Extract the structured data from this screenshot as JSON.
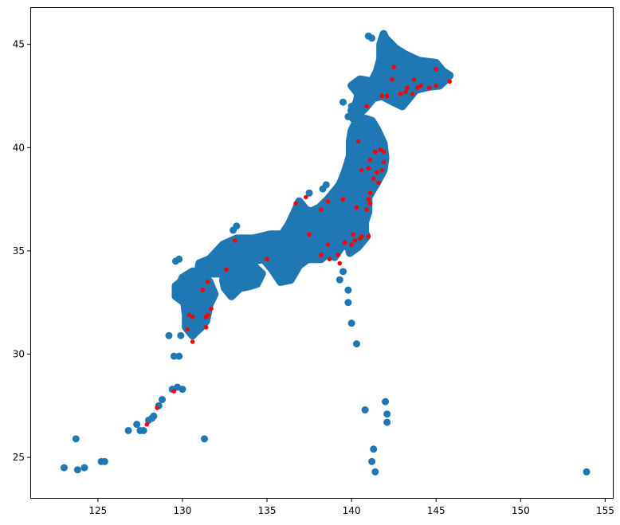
{
  "chart_data": {
    "type": "scatter",
    "title": "",
    "xlabel": "",
    "ylabel": "",
    "xlim": [
      121,
      155.5
    ],
    "ylim": [
      23,
      46.8
    ],
    "grid": false,
    "legend": "none",
    "xticks": [
      125,
      130,
      135,
      140,
      145,
      150,
      155
    ],
    "yticks": [
      25,
      30,
      35,
      40,
      45
    ],
    "colors": {
      "land": "#1f77b4",
      "points": "#ff0000"
    },
    "series": [
      {
        "role": "land",
        "color": "#1f77b4",
        "polygons": [
          [
            [
              141.9,
              45.5
            ],
            [
              142.0,
              45.3
            ],
            [
              142.6,
              44.8
            ],
            [
              143.2,
              44.5
            ],
            [
              144.0,
              44.2
            ],
            [
              145.0,
              44.1
            ],
            [
              145.4,
              43.7
            ],
            [
              145.8,
              43.5
            ],
            [
              145.6,
              43.3
            ],
            [
              145.2,
              43.0
            ],
            [
              144.6,
              42.95
            ],
            [
              143.8,
              42.8
            ],
            [
              143.3,
              42.3
            ],
            [
              143.0,
              42.0
            ],
            [
              142.5,
              42.2
            ],
            [
              141.8,
              42.5
            ],
            [
              141.3,
              42.4
            ],
            [
              140.8,
              41.9
            ],
            [
              140.1,
              41.4
            ],
            [
              140.0,
              41.8
            ],
            [
              140.3,
              42.2
            ],
            [
              140.4,
              42.6
            ],
            [
              140.0,
              43.0
            ],
            [
              140.5,
              43.3
            ],
            [
              141.2,
              43.2
            ],
            [
              141.5,
              43.7
            ],
            [
              141.7,
              44.3
            ],
            [
              141.7,
              45.0
            ]
          ],
          [
            [
              140.4,
              41.5
            ],
            [
              141.2,
              41.3
            ],
            [
              141.5,
              40.9
            ],
            [
              141.9,
              40.2
            ],
            [
              142.0,
              39.5
            ],
            [
              141.9,
              38.9
            ],
            [
              141.5,
              38.3
            ],
            [
              141.0,
              37.6
            ],
            [
              141.0,
              36.9
            ],
            [
              140.8,
              36.4
            ],
            [
              140.8,
              35.9
            ],
            [
              140.9,
              35.7
            ],
            [
              140.4,
              35.2
            ],
            [
              139.9,
              34.9
            ],
            [
              139.8,
              35.3
            ],
            [
              139.4,
              35.2
            ],
            [
              139.0,
              34.7
            ],
            [
              138.8,
              35.0
            ],
            [
              138.2,
              34.6
            ],
            [
              137.4,
              34.6
            ],
            [
              136.9,
              34.3
            ],
            [
              136.4,
              33.6
            ],
            [
              135.8,
              33.5
            ],
            [
              135.3,
              34.1
            ],
            [
              134.8,
              34.6
            ],
            [
              134.0,
              34.5
            ],
            [
              133.0,
              34.2
            ],
            [
              132.2,
              33.9
            ],
            [
              131.4,
              33.9
            ],
            [
              130.9,
              33.9
            ],
            [
              131.0,
              34.4
            ],
            [
              131.6,
              34.6
            ],
            [
              132.4,
              35.3
            ],
            [
              133.2,
              35.6
            ],
            [
              134.2,
              35.6
            ],
            [
              135.2,
              35.8
            ],
            [
              135.9,
              35.8
            ],
            [
              136.3,
              36.3
            ],
            [
              136.7,
              37.0
            ],
            [
              136.9,
              37.4
            ],
            [
              137.3,
              37.0
            ],
            [
              137.6,
              36.9
            ],
            [
              138.1,
              37.1
            ],
            [
              138.6,
              37.5
            ],
            [
              139.3,
              38.2
            ],
            [
              139.6,
              38.8
            ],
            [
              139.9,
              39.6
            ],
            [
              139.9,
              40.3
            ],
            [
              140.0,
              40.8
            ]
          ],
          [
            [
              132.9,
              34.1
            ],
            [
              133.6,
              34.3
            ],
            [
              134.3,
              34.2
            ],
            [
              134.7,
              33.9
            ],
            [
              134.4,
              33.4
            ],
            [
              134.0,
              33.3
            ],
            [
              133.4,
              33.2
            ],
            [
              132.9,
              32.8
            ],
            [
              132.5,
              33.2
            ],
            [
              132.4,
              33.6
            ]
          ],
          [
            [
              130.0,
              33.7
            ],
            [
              130.6,
              34.0
            ],
            [
              131.2,
              33.9
            ],
            [
              131.6,
              33.5
            ],
            [
              131.9,
              32.9
            ],
            [
              131.6,
              32.4
            ],
            [
              131.4,
              31.6
            ],
            [
              131.1,
              31.3
            ],
            [
              130.7,
              31.0
            ],
            [
              130.6,
              30.9
            ],
            [
              130.2,
              31.3
            ],
            [
              130.2,
              31.9
            ],
            [
              130.1,
              32.5
            ],
            [
              129.6,
              32.8
            ],
            [
              129.6,
              33.3
            ],
            [
              129.9,
              33.5
            ]
          ]
        ],
        "points": [
          [
            123.0,
            24.5
          ],
          [
            123.7,
            25.9
          ],
          [
            123.8,
            24.4
          ],
          [
            124.2,
            24.5
          ],
          [
            125.2,
            24.8
          ],
          [
            125.4,
            24.8
          ],
          [
            126.8,
            26.3
          ],
          [
            127.3,
            26.6
          ],
          [
            127.7,
            26.3
          ],
          [
            128.0,
            26.8
          ],
          [
            128.3,
            27.0
          ],
          [
            128.6,
            27.5
          ],
          [
            128.8,
            27.8
          ],
          [
            129.4,
            28.3
          ],
          [
            129.7,
            28.4
          ],
          [
            130.0,
            28.3
          ],
          [
            129.8,
            29.9
          ],
          [
            129.5,
            29.9
          ],
          [
            129.2,
            30.9
          ],
          [
            129.9,
            30.9
          ],
          [
            131.3,
            25.9
          ],
          [
            140.0,
            31.5
          ],
          [
            140.3,
            30.5
          ],
          [
            139.8,
            32.5
          ],
          [
            139.8,
            33.1
          ],
          [
            139.5,
            34.0
          ],
          [
            139.3,
            33.6
          ],
          [
            140.8,
            27.3
          ],
          [
            141.3,
            25.4
          ],
          [
            141.2,
            24.8
          ],
          [
            141.4,
            24.3
          ],
          [
            142.0,
            27.7
          ],
          [
            142.1,
            27.1
          ],
          [
            142.1,
            26.7
          ],
          [
            153.9,
            24.3
          ],
          [
            129.6,
            34.5
          ],
          [
            129.8,
            34.6
          ],
          [
            133.2,
            36.2
          ],
          [
            133.0,
            36.0
          ],
          [
            137.0,
            37.3
          ],
          [
            137.5,
            37.8
          ],
          [
            138.3,
            38.0
          ],
          [
            138.5,
            38.2
          ],
          [
            140.0,
            42.0
          ],
          [
            139.5,
            42.2
          ],
          [
            139.8,
            41.5
          ],
          [
            141.0,
            45.4
          ],
          [
            141.2,
            45.3
          ],
          [
            145.0,
            43.8
          ],
          [
            145.5,
            43.5
          ],
          [
            127.5,
            26.3
          ],
          [
            128.2,
            26.9
          ]
        ]
      },
      {
        "role": "points",
        "color": "#ff0000",
        "points": [
          [
            142.5,
            43.9
          ],
          [
            142.4,
            43.3
          ],
          [
            143.7,
            43.3
          ],
          [
            144.1,
            43.0
          ],
          [
            143.9,
            42.9
          ],
          [
            145.0,
            43.8
          ],
          [
            145.8,
            43.2
          ],
          [
            145.0,
            43.0
          ],
          [
            144.6,
            42.9
          ],
          [
            143.3,
            42.9
          ],
          [
            143.2,
            42.7
          ],
          [
            142.9,
            42.6
          ],
          [
            142.1,
            42.5
          ],
          [
            141.8,
            42.5
          ],
          [
            143.6,
            42.6
          ],
          [
            140.9,
            42.0
          ],
          [
            140.4,
            40.3
          ],
          [
            141.4,
            39.8
          ],
          [
            141.7,
            39.9
          ],
          [
            141.9,
            39.8
          ],
          [
            141.9,
            39.3
          ],
          [
            141.1,
            39.4
          ],
          [
            140.6,
            38.9
          ],
          [
            141.0,
            39.0
          ],
          [
            141.5,
            38.8
          ],
          [
            141.8,
            38.9
          ],
          [
            141.6,
            38.3
          ],
          [
            141.3,
            38.5
          ],
          [
            141.1,
            37.8
          ],
          [
            141.0,
            37.5
          ],
          [
            141.1,
            37.3
          ],
          [
            140.9,
            37.0
          ],
          [
            140.3,
            37.1
          ],
          [
            139.5,
            37.5
          ],
          [
            138.6,
            37.4
          ],
          [
            138.2,
            37.0
          ],
          [
            137.3,
            37.6
          ],
          [
            136.7,
            37.3
          ],
          [
            137.5,
            35.8
          ],
          [
            140.1,
            35.8
          ],
          [
            140.5,
            35.6
          ],
          [
            140.2,
            35.5
          ],
          [
            140.6,
            35.7
          ],
          [
            141.0,
            35.7
          ],
          [
            140.0,
            35.3
          ],
          [
            139.6,
            35.4
          ],
          [
            138.6,
            35.3
          ],
          [
            138.2,
            34.8
          ],
          [
            138.7,
            34.6
          ],
          [
            139.2,
            34.8
          ],
          [
            139.3,
            34.4
          ],
          [
            135.0,
            34.6
          ],
          [
            133.1,
            35.5
          ],
          [
            132.6,
            34.1
          ],
          [
            131.5,
            33.5
          ],
          [
            131.2,
            33.1
          ],
          [
            131.7,
            32.2
          ],
          [
            131.5,
            31.9
          ],
          [
            131.4,
            31.8
          ],
          [
            130.6,
            31.8
          ],
          [
            130.4,
            31.9
          ],
          [
            131.4,
            31.3
          ],
          [
            130.3,
            31.2
          ],
          [
            130.6,
            30.6
          ],
          [
            129.5,
            28.2
          ],
          [
            128.5,
            27.4
          ],
          [
            127.9,
            26.6
          ]
        ]
      }
    ]
  }
}
